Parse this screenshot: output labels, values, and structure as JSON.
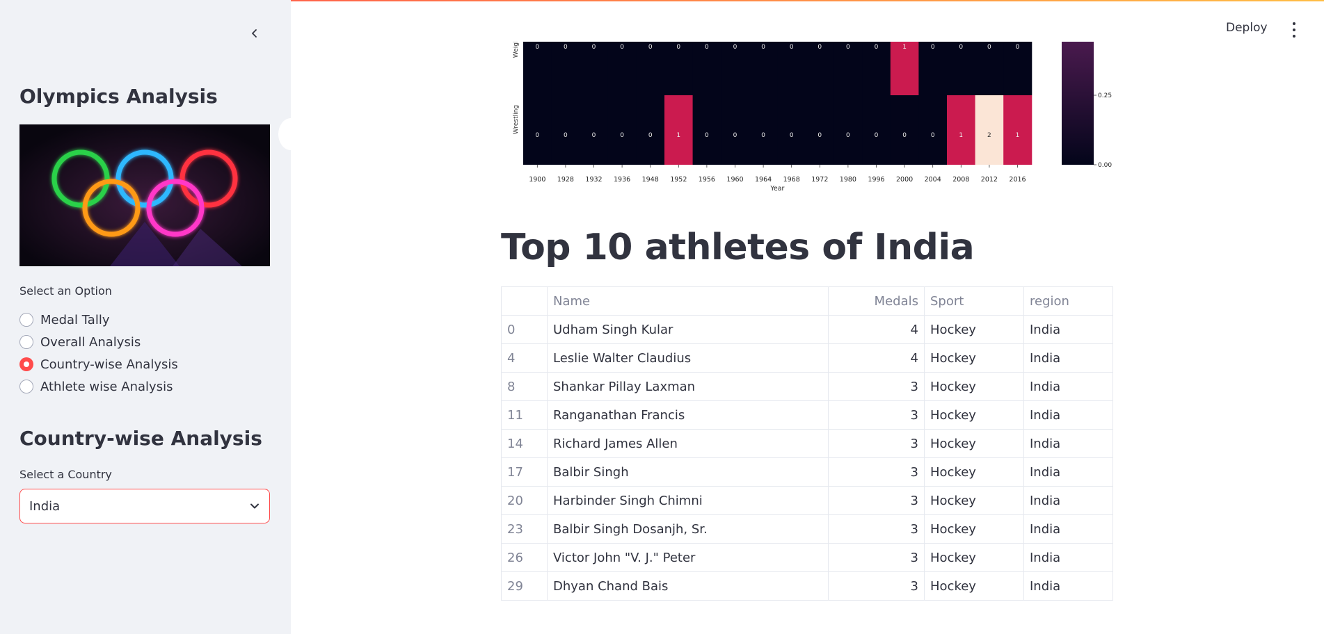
{
  "sidebar": {
    "title": "Olympics Analysis",
    "image_icon": "olympic-rings-neon",
    "option_label": "Select an Option",
    "options": [
      "Medal Tally",
      "Overall Analysis",
      "Country-wise Analysis",
      "Athlete wise Analysis"
    ],
    "selected_option": "Country-wise Analysis",
    "section_title": "Country-wise Analysis",
    "country_label": "Select a Country",
    "country_value": "India"
  },
  "header": {
    "deploy_label": "Deploy",
    "menu_icon": "vertical-dots-icon"
  },
  "heatmap": {
    "rows": [
      "Weightli",
      "Wrestling"
    ],
    "years": [
      "1900",
      "1928",
      "1932",
      "1936",
      "1948",
      "1952",
      "1956",
      "1960",
      "1964",
      "1968",
      "1972",
      "1980",
      "1996",
      "2000",
      "2004",
      "2008",
      "2012",
      "2016"
    ],
    "values": [
      [
        0,
        0,
        0,
        0,
        0,
        0,
        0,
        0,
        0,
        0,
        0,
        0,
        0,
        1,
        0,
        0,
        0,
        0
      ],
      [
        0,
        0,
        0,
        0,
        0,
        1,
        0,
        0,
        0,
        0,
        0,
        0,
        0,
        0,
        0,
        1,
        2,
        1
      ]
    ],
    "xlabel": "Year",
    "colorbar_ticks": [
      "0.25",
      "0.00"
    ]
  },
  "main": {
    "title": "Top 10 athletes of India",
    "columns": [
      "",
      "Name",
      "Medals",
      "Sport",
      "region"
    ],
    "rows": [
      [
        "0",
        "Udham Singh Kular",
        "4",
        "Hockey",
        "India"
      ],
      [
        "4",
        "Leslie Walter Claudius",
        "4",
        "Hockey",
        "India"
      ],
      [
        "8",
        "Shankar Pillay Laxman",
        "3",
        "Hockey",
        "India"
      ],
      [
        "11",
        "Ranganathan Francis",
        "3",
        "Hockey",
        "India"
      ],
      [
        "14",
        "Richard James Allen",
        "3",
        "Hockey",
        "India"
      ],
      [
        "17",
        "Balbir Singh",
        "3",
        "Hockey",
        "India"
      ],
      [
        "20",
        "Harbinder Singh Chimni",
        "3",
        "Hockey",
        "India"
      ],
      [
        "23",
        "Balbir Singh Dosanjh, Sr.",
        "3",
        "Hockey",
        "India"
      ],
      [
        "26",
        "Victor John \"V. J.\" Peter",
        "3",
        "Hockey",
        "India"
      ],
      [
        "29",
        "Dhyan Chand Bais",
        "3",
        "Hockey",
        "India"
      ]
    ]
  },
  "colors": {
    "accent": "#ff4b4b",
    "sidebar_bg": "#f0f2f6",
    "text": "#31333f",
    "muted": "#808495"
  }
}
